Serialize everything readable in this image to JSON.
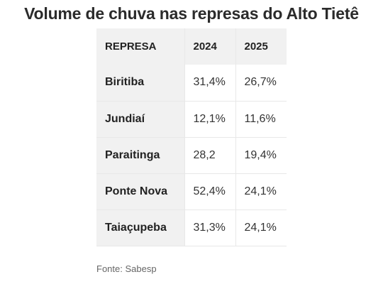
{
  "chart_data": {
    "type": "table",
    "title": "Volume de chuva nas represas do Alto Tietê",
    "columns": [
      "REPRESA",
      "2024",
      "2025"
    ],
    "rows": [
      [
        "Biritiba",
        "31,4%",
        "26,7%"
      ],
      [
        "Jundiaí",
        "12,1%",
        "11,6%"
      ],
      [
        "Paraitinga",
        "28,2",
        "19,4%"
      ],
      [
        "Ponte Nova",
        "52,4%",
        "24,1%"
      ],
      [
        "Taiaçupeba",
        "31,3%",
        "24,1%"
      ]
    ],
    "source": "Fonte: Sabesp"
  },
  "colors": {
    "header_background": "#f1f1f1",
    "row_label_background": "#f1f1f1",
    "cell_background": "#ffffff",
    "border": "#e8e8e8"
  }
}
